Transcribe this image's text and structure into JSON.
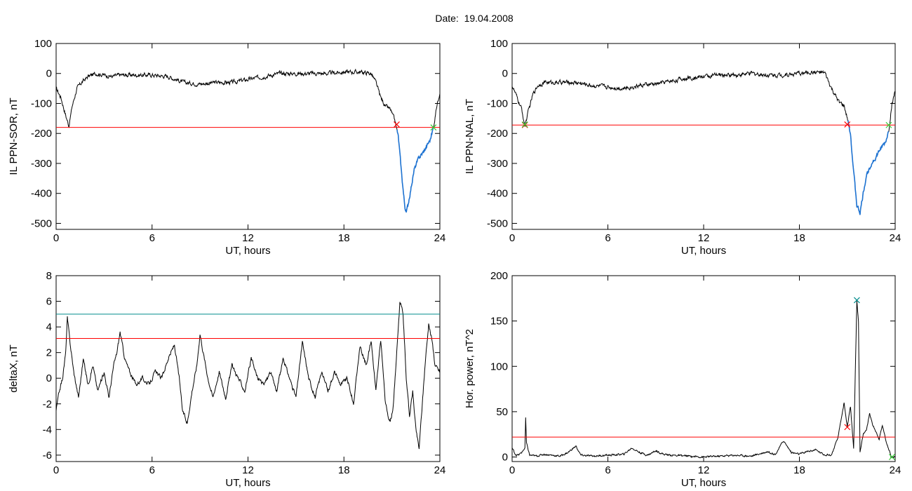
{
  "figure_title": "Date:  19.04.2008",
  "colors": {
    "threshold": "#ff0000",
    "upper_threshold": "#008b8b",
    "highlight": "#1e73d2",
    "trace": "#000000",
    "start_marker": "#ff0000",
    "peak_marker": "#008b8b",
    "end_marker": "#32cd32"
  },
  "chart_data": [
    {
      "type": "line",
      "id": "sor",
      "xlabel": "UT, hours",
      "ylabel": "IL PPN-SOR, nT",
      "xlim": [
        0,
        24
      ],
      "ylim": [
        -520,
        100
      ],
      "xticks": [
        0,
        6,
        12,
        18,
        24
      ],
      "yticks": [
        100,
        0,
        -100,
        -200,
        -300,
        -400,
        -500
      ],
      "threshold": -180,
      "highlight_range": [
        21.3,
        23.6
      ],
      "markers": [
        {
          "x": 21.3,
          "y": -170,
          "kind": "start"
        },
        {
          "x": 23.6,
          "y": -180,
          "kind": "end"
        }
      ],
      "series": [
        {
          "x": [
            0,
            0.3,
            0.6,
            0.8,
            1.0,
            1.3,
            1.6,
            2.0,
            2.5,
            3.0,
            3.5,
            4.0,
            4.5,
            5.0,
            6.0,
            7.0,
            8.0,
            9.0,
            10.0,
            11.0,
            12.0,
            13.0,
            14.0,
            15.0,
            16.0,
            17.0,
            18.0,
            19.0,
            19.7,
            20.0,
            20.3,
            20.6,
            20.9,
            21.2,
            21.4,
            21.6,
            21.8,
            21.9,
            22.0,
            22.2,
            22.4,
            22.7,
            23.0,
            23.2,
            23.4,
            23.6,
            23.8,
            24.0
          ],
          "y": [
            -50,
            -80,
            -140,
            -175,
            -110,
            -50,
            -30,
            -10,
            0,
            -5,
            -10,
            -5,
            -5,
            -5,
            -5,
            -10,
            -30,
            -35,
            -30,
            -30,
            -20,
            -10,
            0,
            0,
            0,
            0,
            5,
            5,
            0,
            -30,
            -80,
            -110,
            -120,
            -160,
            -210,
            -330,
            -440,
            -465,
            -440,
            -380,
            -320,
            -280,
            -260,
            -240,
            -220,
            -180,
            -110,
            -60
          ]
        }
      ]
    },
    {
      "type": "line",
      "id": "nal",
      "xlabel": "UT, hours",
      "ylabel": "IL PPN-NAL, nT",
      "xlim": [
        0,
        24
      ],
      "ylim": [
        -520,
        100
      ],
      "xticks": [
        0,
        6,
        12,
        18,
        24
      ],
      "yticks": [
        100,
        0,
        -100,
        -200,
        -300,
        -400,
        -500
      ],
      "threshold": -172,
      "highlight_range": [
        21.0,
        23.6
      ],
      "markers": [
        {
          "x": 0.8,
          "y": -172,
          "kind": "start"
        },
        {
          "x": 0.8,
          "y": -170,
          "kind": "end"
        },
        {
          "x": 21.0,
          "y": -170,
          "kind": "start"
        },
        {
          "x": 23.6,
          "y": -172,
          "kind": "end"
        }
      ],
      "series": [
        {
          "x": [
            0,
            0.3,
            0.6,
            0.8,
            1.0,
            1.3,
            1.6,
            2.0,
            3.0,
            4.0,
            5.0,
            6.0,
            7.0,
            8.0,
            9.0,
            10.0,
            11.0,
            12.0,
            13.0,
            14.0,
            15.0,
            16.0,
            17.0,
            18.0,
            19.0,
            19.6,
            20.0,
            20.4,
            20.8,
            21.0,
            21.2,
            21.4,
            21.6,
            21.8,
            22.0,
            22.2,
            22.5,
            22.8,
            23.1,
            23.4,
            23.6,
            23.8,
            24.0
          ],
          "y": [
            -40,
            -80,
            -120,
            -175,
            -130,
            -70,
            -40,
            -30,
            -30,
            -30,
            -40,
            -45,
            -50,
            -40,
            -35,
            -25,
            -15,
            -10,
            -5,
            -5,
            0,
            -5,
            -5,
            0,
            5,
            0,
            -50,
            -90,
            -110,
            -150,
            -200,
            -330,
            -440,
            -465,
            -400,
            -340,
            -300,
            -280,
            -250,
            -230,
            -190,
            -100,
            -60
          ]
        }
      ]
    },
    {
      "type": "line",
      "id": "deltax",
      "xlabel": "UT, hours",
      "ylabel": "deltaX, nT",
      "xlim": [
        0,
        24
      ],
      "ylim": [
        -6.5,
        8
      ],
      "xticks": [
        0,
        6,
        12,
        18,
        24
      ],
      "yticks": [
        8,
        6,
        4,
        2,
        0,
        -2,
        -4,
        -6
      ],
      "threshold": 3.1,
      "upper_threshold": 5,
      "series": [
        {
          "x": [
            0,
            0.2,
            0.4,
            0.6,
            0.7,
            0.9,
            1.1,
            1.4,
            1.7,
            2.0,
            2.3,
            2.6,
            3.0,
            3.3,
            3.6,
            3.8,
            4.0,
            4.3,
            4.6,
            5.0,
            5.4,
            5.8,
            6.2,
            6.6,
            7.0,
            7.4,
            7.7,
            7.9,
            8.2,
            8.5,
            8.8,
            9.0,
            9.2,
            9.5,
            9.8,
            10.2,
            10.6,
            11.0,
            11.4,
            11.8,
            12.2,
            12.6,
            13.0,
            13.4,
            13.8,
            14.2,
            14.6,
            15.0,
            15.4,
            15.8,
            16.2,
            16.6,
            17.0,
            17.4,
            17.8,
            18.2,
            18.6,
            19.0,
            19.4,
            19.7,
            20.0,
            20.3,
            20.6,
            20.9,
            21.1,
            21.3,
            21.5,
            21.7,
            21.9,
            22.1,
            22.3,
            22.5,
            22.7,
            22.9,
            23.1,
            23.3,
            23.5,
            23.7,
            24.0
          ],
          "y": [
            -2.5,
            -1.0,
            0.0,
            2.0,
            4.7,
            2.5,
            0.5,
            -1.5,
            1.5,
            -0.5,
            1.0,
            -1.0,
            0.5,
            -1.5,
            1.0,
            2.0,
            3.6,
            1.5,
            0.5,
            -0.5,
            0.0,
            -0.5,
            0.5,
            0.0,
            1.5,
            2.6,
            0.0,
            -2.5,
            -3.5,
            -1.0,
            1.0,
            3.5,
            2.0,
            0.0,
            -1.5,
            0.5,
            -1.5,
            1.0,
            0.0,
            -1.0,
            1.5,
            0.0,
            -0.5,
            0.5,
            -1.0,
            1.5,
            0.0,
            -1.5,
            2.8,
            0.0,
            -1.5,
            0.5,
            -1.0,
            0.5,
            -0.5,
            0.0,
            -2.0,
            2.5,
            1.0,
            3.0,
            -1.0,
            3.0,
            -2.0,
            -3.5,
            -2.0,
            2.0,
            6.0,
            5.0,
            0.0,
            -3.0,
            -1.0,
            -4.0,
            -5.5,
            -2.0,
            1.5,
            4.2,
            3.0,
            1.0,
            0.5
          ]
        }
      ]
    },
    {
      "type": "line",
      "id": "power",
      "xlabel": "UT, hours",
      "ylabel": "Hor. power, nT^2",
      "xlim": [
        0,
        24
      ],
      "ylim": [
        -5,
        200
      ],
      "xticks": [
        0,
        6,
        12,
        18,
        24
      ],
      "yticks": [
        200,
        150,
        100,
        50,
        0
      ],
      "threshold": 22,
      "markers": [
        {
          "x": 21.0,
          "y": 33,
          "kind": "start"
        },
        {
          "x": 21.6,
          "y": 173,
          "kind": "peak"
        },
        {
          "x": 23.8,
          "y": 0,
          "kind": "end"
        }
      ],
      "series": [
        {
          "x": [
            0,
            0.2,
            0.4,
            0.6,
            0.8,
            0.85,
            0.9,
            1.1,
            1.5,
            2.0,
            3.0,
            3.5,
            4.0,
            4.3,
            5.0,
            6.0,
            7.0,
            7.5,
            8.0,
            8.5,
            9.0,
            9.5,
            10.0,
            11.0,
            12.0,
            13.0,
            14.0,
            15.0,
            16.0,
            16.5,
            17.0,
            17.5,
            18.0,
            18.5,
            19.0,
            19.5,
            20.0,
            20.4,
            20.8,
            21.0,
            21.2,
            21.4,
            21.6,
            21.7,
            21.8,
            22.0,
            22.2,
            22.4,
            22.6,
            22.8,
            23.0,
            23.2,
            23.4,
            23.6,
            23.8,
            24.0
          ],
          "y": [
            10,
            3,
            2,
            5,
            10,
            43,
            15,
            2,
            1,
            3,
            1,
            5,
            12,
            2,
            1,
            2,
            3,
            10,
            5,
            2,
            7,
            3,
            2,
            1,
            0,
            1,
            2,
            1,
            6,
            3,
            18,
            5,
            3,
            6,
            8,
            3,
            2,
            20,
            60,
            33,
            55,
            10,
            173,
            150,
            5,
            25,
            30,
            48,
            35,
            28,
            20,
            35,
            20,
            8,
            0,
            0
          ]
        }
      ]
    }
  ]
}
